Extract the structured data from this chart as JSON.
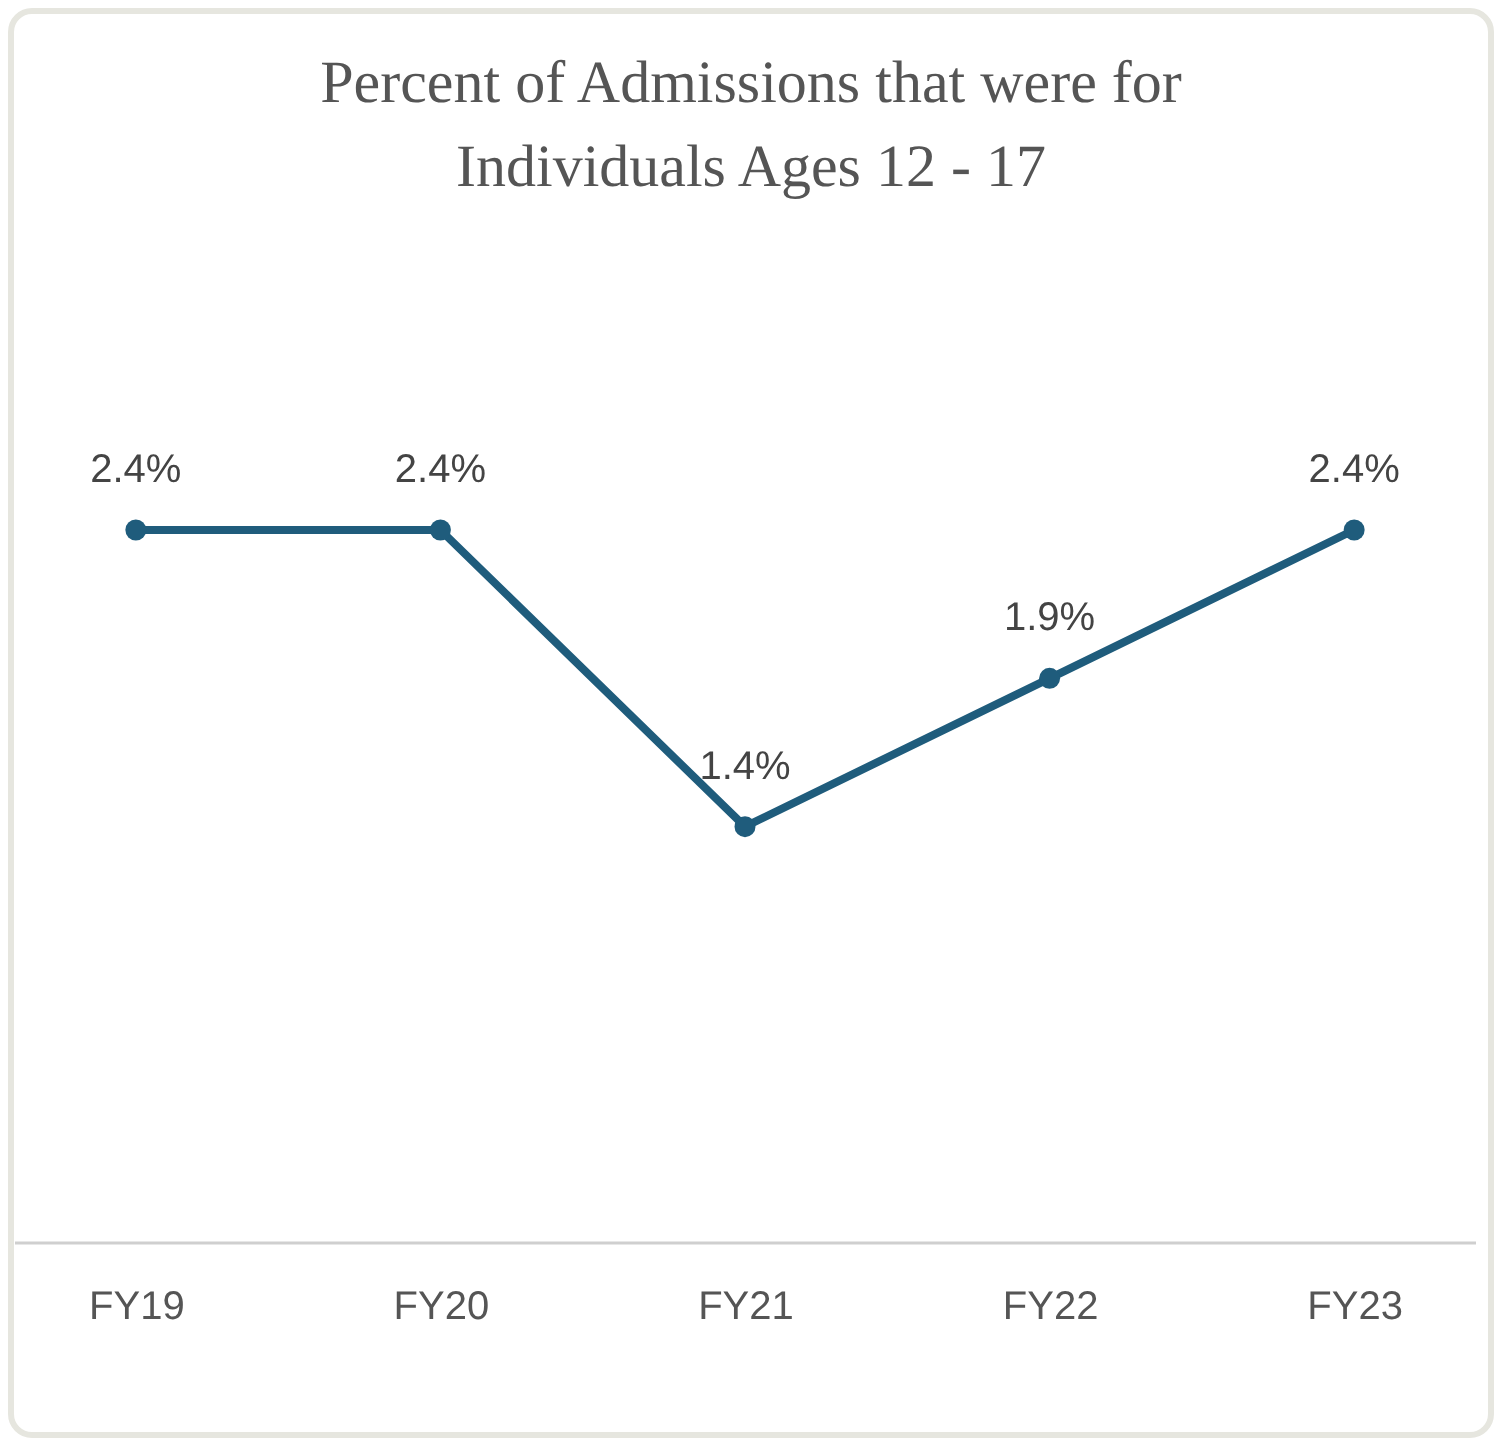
{
  "chart_data": {
    "type": "line",
    "title": "Percent of Admissions that were for Individuals Ages 12 - 17",
    "categories": [
      "FY19",
      "FY20",
      "FY21",
      "FY22",
      "FY23"
    ],
    "series": [
      {
        "color": "#1f5c7c",
        "values": [
          2.4,
          2.4,
          1.4,
          1.9,
          2.4
        ],
        "value_labels": [
          "2.4%",
          "2.4%",
          "1.4%",
          "1.9%",
          "2.4%"
        ]
      }
    ],
    "marker": "circle",
    "grid": false
  }
}
